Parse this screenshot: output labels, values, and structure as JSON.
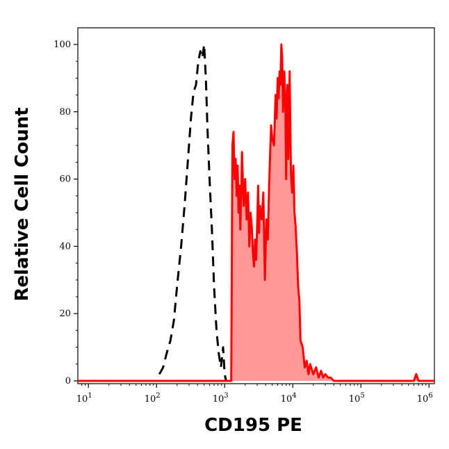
{
  "chart_data": {
    "type": "histogram",
    "xlabel": "CD195 PE",
    "ylabel": "Relative Cell Count",
    "xscale": "log",
    "xlim": [
      7,
      1200000
    ],
    "ylim": [
      0,
      105
    ],
    "x_ticks": [
      {
        "value": 10,
        "base": "10",
        "exp": "1"
      },
      {
        "value": 100,
        "base": "10",
        "exp": "2"
      },
      {
        "value": 1000,
        "base": "10",
        "exp": "3"
      },
      {
        "value": 10000,
        "base": "10",
        "exp": "4"
      },
      {
        "value": 100000,
        "base": "10",
        "exp": "5"
      },
      {
        "value": 1000000,
        "base": "10",
        "exp": "6"
      }
    ],
    "y_ticks": [
      0,
      20,
      40,
      60,
      80,
      100
    ],
    "grid": false,
    "series": [
      {
        "style": "dashed",
        "color": "#000000",
        "fill": "none",
        "x": [
          110,
          125,
          140,
          160,
          180,
          200,
          230,
          260,
          290,
          320,
          350,
          380,
          410,
          440,
          470,
          500,
          530,
          560,
          600,
          650,
          700,
          760,
          820,
          880,
          950,
          1000,
          1050
        ],
        "y": [
          2,
          4,
          8,
          12,
          18,
          28,
          40,
          53,
          66,
          78,
          86,
          88,
          95,
          98,
          96,
          100,
          90,
          75,
          60,
          45,
          28,
          15,
          8,
          4,
          10,
          2,
          0
        ]
      },
      {
        "style": "solid",
        "color": "#ff0000",
        "fill": "#ff9999",
        "x": [
          7,
          100,
          500,
          1000,
          1250,
          1300,
          1350,
          1400,
          1450,
          1500,
          1550,
          1600,
          1650,
          1700,
          1800,
          1900,
          2000,
          2100,
          2200,
          2300,
          2400,
          2500,
          2600,
          2700,
          2800,
          2900,
          3000,
          3100,
          3200,
          3300,
          3500,
          3700,
          3900,
          4100,
          4300,
          4500,
          4800,
          5000,
          5300,
          5600,
          5800,
          6000,
          6200,
          6400,
          6600,
          6800,
          7000,
          7200,
          7500,
          7800,
          8000,
          8300,
          8600,
          9000,
          9400,
          9800,
          10200,
          10600,
          11000,
          11500,
          12000,
          12500,
          13000,
          14000,
          15000,
          16000,
          17000,
          18000,
          20000,
          22000,
          24000,
          26000,
          28000,
          30000,
          33000,
          36000,
          40000,
          45000,
          50000,
          60000,
          80000,
          100000,
          200000,
          400000,
          600000,
          650000,
          700000,
          750000,
          1000000,
          1200000
        ],
        "y": [
          0,
          0,
          0,
          0,
          0,
          70,
          74,
          60,
          66,
          55,
          64,
          50,
          58,
          45,
          68,
          52,
          60,
          48,
          56,
          40,
          50,
          46,
          38,
          34,
          42,
          36,
          46,
          58,
          44,
          52,
          48,
          56,
          30,
          48,
          42,
          58,
          76,
          72,
          70,
          85,
          78,
          90,
          84,
          92,
          88,
          100,
          96,
          80,
          92,
          82,
          60,
          88,
          66,
          92,
          62,
          56,
          64,
          50,
          46,
          38,
          28,
          24,
          12,
          10,
          4,
          6,
          2,
          5,
          2,
          4,
          1,
          3,
          1,
          2,
          1,
          1,
          0,
          0,
          0,
          0,
          0,
          0,
          0,
          0,
          0,
          2,
          0,
          0,
          0,
          0
        ]
      }
    ]
  }
}
